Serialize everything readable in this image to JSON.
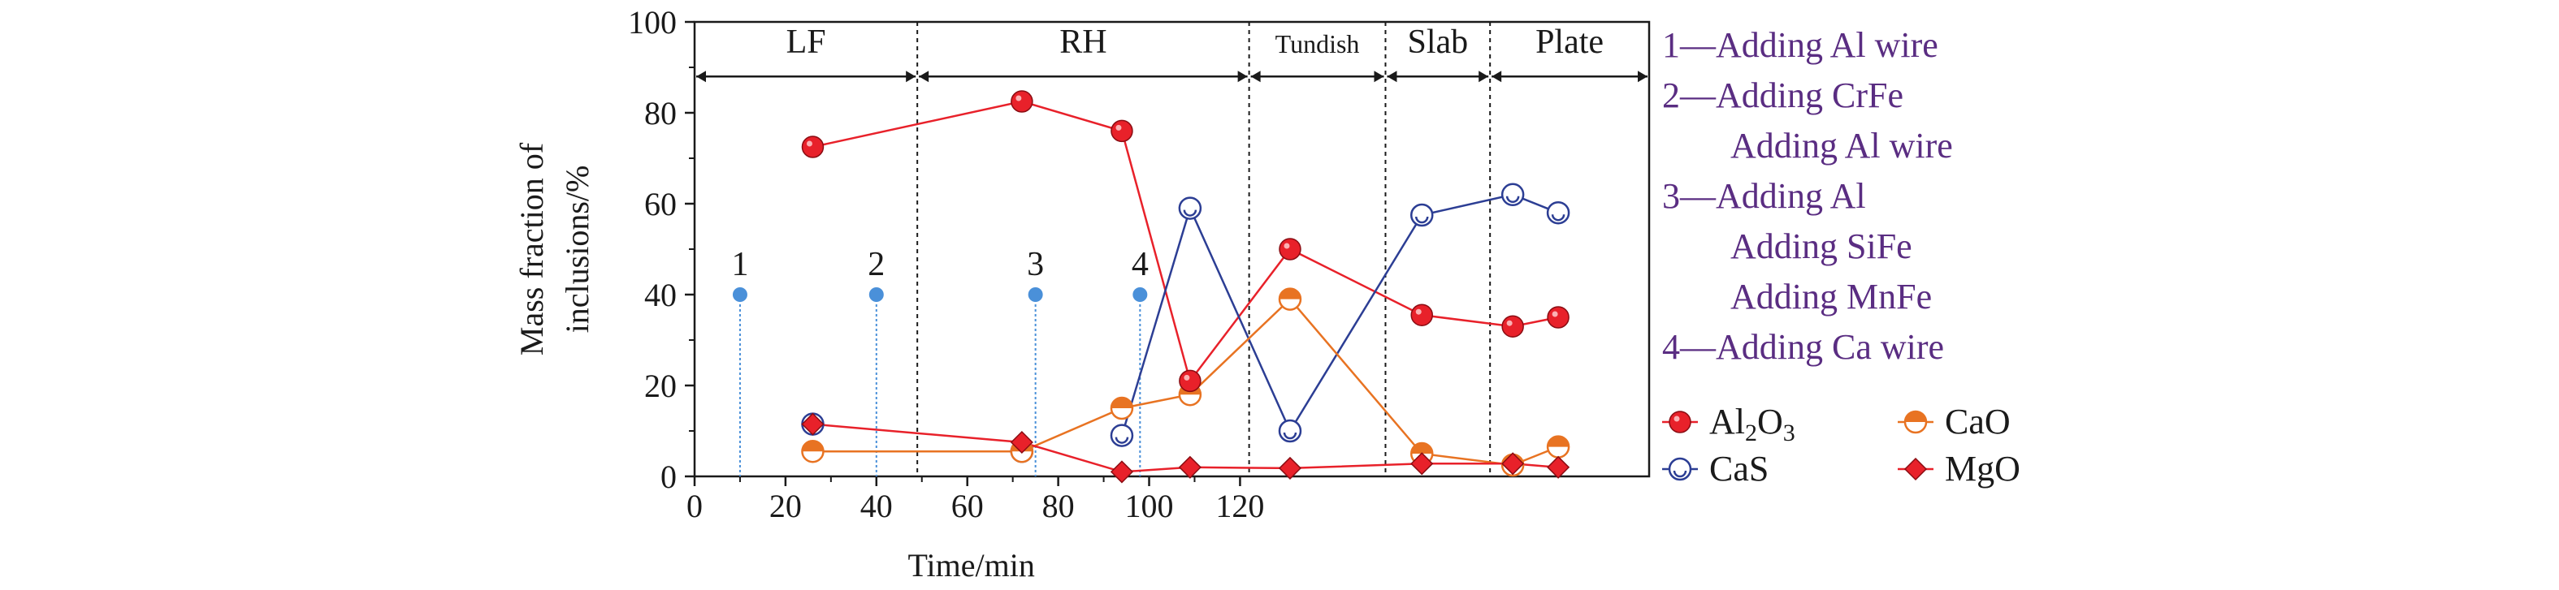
{
  "chart_data": {
    "type": "line",
    "xlabel": "Time/min",
    "ylabel_lines": [
      "Mass fraction of",
      "inclusions/%"
    ],
    "xlim": [
      0,
      210
    ],
    "ylim": [
      0,
      100
    ],
    "x_ticks": [
      0,
      20,
      40,
      60,
      80,
      100,
      120
    ],
    "y_ticks": [
      0,
      20,
      40,
      60,
      80,
      100
    ],
    "stages": [
      {
        "label": "LF",
        "from": 0,
        "to": 49
      },
      {
        "label": "RH",
        "from": 49,
        "to": 122
      },
      {
        "label": "Tundish",
        "from": 122,
        "to": 152
      },
      {
        "label": "Slab",
        "from": 152,
        "to": 175
      },
      {
        "label": "Plate",
        "from": 175,
        "to": 210
      }
    ],
    "events": [
      {
        "label": "1",
        "x": 10,
        "y": 40
      },
      {
        "label": "2",
        "x": 40,
        "y": 40
      },
      {
        "label": "3",
        "x": 75,
        "y": 40
      },
      {
        "label": "4",
        "x": 98,
        "y": 40
      }
    ],
    "series": [
      {
        "name": "Al2O3",
        "marker": "filled-circle",
        "color": "#e8212a",
        "x": [
          26,
          72,
          94,
          109,
          131,
          160,
          180,
          190
        ],
        "y": [
          72.5,
          82.5,
          76,
          21,
          50,
          35.5,
          33,
          35
        ]
      },
      {
        "name": "CaS",
        "marker": "open-circle",
        "color": "#2c3e94",
        "x": [
          94,
          109,
          131,
          160,
          180,
          190
        ],
        "y": [
          9,
          59,
          10,
          57.5,
          62,
          58
        ]
      },
      {
        "name": "CaO",
        "marker": "half-circle",
        "color": "#e87322",
        "x": [
          26,
          72,
          94,
          109,
          131,
          160,
          180,
          190
        ],
        "y": [
          5.5,
          5.5,
          15,
          18,
          39,
          5,
          2.5,
          6.5
        ]
      },
      {
        "name": "MgO",
        "marker": "diamond",
        "color": "#e8212a",
        "x": [
          26,
          72,
          94,
          109,
          131,
          160,
          180,
          190
        ],
        "y": [
          11.5,
          7.5,
          1,
          2,
          1.8,
          2.8,
          2.8,
          2
        ]
      }
    ],
    "extra_markers": [
      {
        "series": "CaS",
        "x": 26,
        "y": 11.5
      },
      {
        "series": "CaS",
        "x": 72,
        "y": 5.5
      }
    ],
    "legend": [
      {
        "series": "Al2O3",
        "label_main": "Al",
        "sub1": "2",
        "mid": "O",
        "sub2": "3"
      },
      {
        "series": "CaO",
        "label_main": "CaO"
      },
      {
        "series": "CaS",
        "label_main": "CaS"
      },
      {
        "series": "MgO",
        "label_main": "MgO"
      }
    ],
    "notes": [
      "1—Adding Al wire",
      "2—Adding CrFe",
      "Adding Al wire",
      "3—Adding Al",
      "Adding SiFe",
      "Adding MnFe",
      "4—Adding Ca wire"
    ],
    "note_indent": [
      false,
      false,
      true,
      false,
      true,
      true,
      false
    ],
    "event_color": "#4a90d9",
    "note_color": "#5a2d82"
  }
}
